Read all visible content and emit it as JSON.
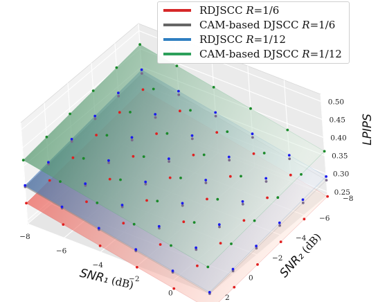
{
  "chart_data": {
    "type": "surface3d",
    "title": "",
    "xlabel": "SNR₁ (dB)",
    "ylabel": "SNR₂ (dB)",
    "zlabel": "LPIPS",
    "x": [
      -8,
      -7,
      -6,
      -5,
      -4,
      -3,
      -2,
      -1,
      0,
      1,
      2
    ],
    "y": [
      -8,
      -7,
      -6,
      -5,
      -4,
      -3,
      -2,
      -1,
      0,
      1,
      2
    ],
    "xticks": [
      -8,
      -6,
      -4,
      -2,
      0,
      2
    ],
    "yticks": [
      -8,
      -6,
      -4,
      -2,
      0,
      2
    ],
    "zticks": [
      0.25,
      0.3,
      0.35,
      0.4,
      0.45,
      0.5
    ],
    "xlim": [
      -8,
      2
    ],
    "ylim": [
      -8,
      2
    ],
    "zlim": [
      0.24,
      0.52
    ],
    "grid": true,
    "legend_position": "top-right",
    "series": [
      {
        "name": "RDJSCC R=1/6",
        "color": "#d62728",
        "corner_values": [
          0.337,
          0.237,
          0.297,
          0.197
        ]
      },
      {
        "name": "CAM-based DJSCC R=1/6",
        "color": "#666666",
        "corner_values": [
          0.382,
          0.282,
          0.342,
          0.242
        ]
      },
      {
        "name": "RDJSCC R=1/12",
        "color": "#2f7fc1",
        "corner_values": [
          0.392,
          0.292,
          0.346,
          0.246
        ]
      },
      {
        "name": "CAM-based DJSCC R=1/12",
        "color": "#2ca05a",
        "corner_values": [
          0.462,
          0.362,
          0.416,
          0.316
        ]
      }
    ]
  },
  "legend": {
    "items": [
      {
        "prefix": "RDJSCC ",
        "var": "R",
        "suffix": "=1/6",
        "color": "#d62728"
      },
      {
        "prefix": "CAM-based DJSCC ",
        "var": "R",
        "suffix": "=1/6",
        "color": "#666666"
      },
      {
        "prefix": "RDJSCC ",
        "var": "R",
        "suffix": "=1/12",
        "color": "#2f7fc1"
      },
      {
        "prefix": "CAM-based DJSCC ",
        "var": "R",
        "suffix": "=1/12",
        "color": "#2ca05a"
      }
    ]
  }
}
